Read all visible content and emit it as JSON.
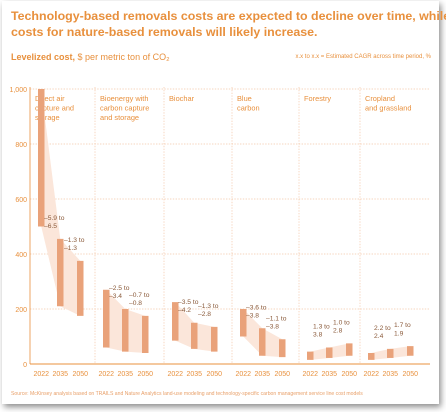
{
  "title_line1": "Technology-based removals costs are expected to decline over time, while",
  "title_line2": "costs for nature-based removals will likely increase.",
  "unit_label_bold": "Levelized cost,",
  "unit_label_rest": "$ per metric ton of CO₂",
  "cagr_note": "x.x to x.x = Estimated CAGR across time period, %",
  "source": "Source: McKinsey analysis based on TRAILS and Nature Analytics land-use modeling and technology-specific carbon management service line cost models",
  "colors": {
    "accent": "#e8903d",
    "bar": "#e9a27a",
    "band": "#fbe6da",
    "grid": "#f4c7a8",
    "axis": "#e8903d"
  },
  "chart_data": {
    "type": "bar",
    "ylim": [
      0,
      1000
    ],
    "yticks": [
      "0",
      "200",
      "400",
      "600",
      "800",
      "1,000"
    ],
    "x_tick_labels": [
      "2022",
      "2035",
      "2050"
    ],
    "grid": true,
    "groups": [
      {
        "name_lines": [
          "Direct air",
          "capture and",
          "storage"
        ],
        "ranges": [
          {
            "year": "2022",
            "low": 500,
            "high": 1000
          },
          {
            "year": "2035",
            "low": 210,
            "high": 455
          },
          {
            "year": "2050",
            "low": 175,
            "high": 375
          }
        ],
        "cagr": [
          {
            "lines": [
              "–5.9 to",
              "–6.5"
            ]
          },
          {
            "lines": [
              "–1.3 to",
              "–1.3"
            ]
          }
        ]
      },
      {
        "name_lines": [
          "Bioenergy with",
          "carbon capture",
          "and storage"
        ],
        "ranges": [
          {
            "year": "2022",
            "low": 60,
            "high": 270
          },
          {
            "year": "2035",
            "low": 45,
            "high": 200
          },
          {
            "year": "2050",
            "low": 40,
            "high": 175
          }
        ],
        "cagr": [
          {
            "lines": [
              "–2.5 to",
              "–3.4"
            ]
          },
          {
            "lines": [
              "–0.7 to",
              "–0.8"
            ]
          }
        ]
      },
      {
        "name_lines": [
          "Biochar"
        ],
        "ranges": [
          {
            "year": "2022",
            "low": 85,
            "high": 225
          },
          {
            "year": "2035",
            "low": 55,
            "high": 150
          },
          {
            "year": "2050",
            "low": 45,
            "high": 135
          }
        ],
        "cagr": [
          {
            "lines": [
              "–3.5 to",
              "–4.2"
            ]
          },
          {
            "lines": [
              "–1.3 to",
              "–2.8"
            ]
          }
        ]
      },
      {
        "name_lines": [
          "Blue",
          "carbon"
        ],
        "ranges": [
          {
            "year": "2022",
            "low": 100,
            "high": 200
          },
          {
            "year": "2035",
            "low": 30,
            "high": 130
          },
          {
            "year": "2050",
            "low": 25,
            "high": 90
          }
        ],
        "cagr": [
          {
            "lines": [
              "–3.6 to",
              "–3.8"
            ]
          },
          {
            "lines": [
              "–1.1 to",
              "–3.8"
            ]
          }
        ]
      },
      {
        "name_lines": [
          "Forestry"
        ],
        "ranges": [
          {
            "year": "2022",
            "low": 15,
            "high": 45
          },
          {
            "year": "2035",
            "low": 22,
            "high": 60
          },
          {
            "year": "2050",
            "low": 30,
            "high": 75
          }
        ],
        "cagr": [
          {
            "lines": [
              "1.3 to",
              "3.8"
            ]
          },
          {
            "lines": [
              "1.0 to",
              "2.8"
            ]
          }
        ]
      },
      {
        "name_lines": [
          "Cropland",
          "and grassland"
        ],
        "ranges": [
          {
            "year": "2022",
            "low": 15,
            "high": 40
          },
          {
            "year": "2035",
            "low": 22,
            "high": 55
          },
          {
            "year": "2050",
            "low": 30,
            "high": 65
          }
        ],
        "cagr": [
          {
            "lines": [
              "2.2 to",
              "2.4"
            ]
          },
          {
            "lines": [
              "1.7 to",
              "1.9"
            ]
          }
        ]
      }
    ]
  }
}
